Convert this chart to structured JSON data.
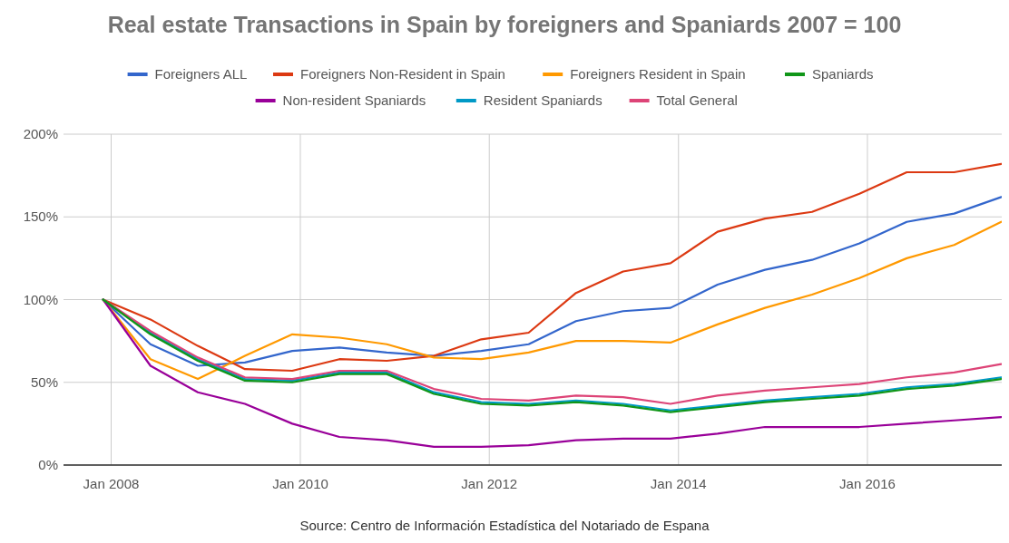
{
  "chart_data": {
    "type": "line",
    "title": "Real estate Transactions in Spain by foreigners and Spaniards 2007 = 100",
    "x": [
      "2007-12",
      "2008-06",
      "2008-12",
      "2009-06",
      "2009-12",
      "2010-06",
      "2010-12",
      "2011-06",
      "2011-12",
      "2012-06",
      "2012-12",
      "2013-06",
      "2013-12",
      "2014-06",
      "2014-12",
      "2015-06",
      "2015-12",
      "2016-06",
      "2016-12",
      "2017-06"
    ],
    "series": [
      {
        "name": "Foreigners ALL",
        "color": "#3366cc",
        "values": [
          100,
          73,
          60,
          62,
          69,
          71,
          68,
          66,
          69,
          73,
          87,
          93,
          95,
          109,
          118,
          124,
          134,
          147,
          152,
          162
        ]
      },
      {
        "name": "Foreigners Non-Resident in Spain",
        "color": "#dc3912",
        "values": [
          100,
          88,
          72,
          58,
          57,
          64,
          63,
          66,
          76,
          80,
          104,
          117,
          122,
          141,
          149,
          153,
          164,
          177,
          177,
          182
        ]
      },
      {
        "name": "Foreigners Resident in Spain",
        "color": "#ff9900",
        "values": [
          100,
          64,
          52,
          66,
          79,
          77,
          73,
          65,
          64,
          68,
          75,
          75,
          74,
          85,
          95,
          103,
          113,
          125,
          133,
          147
        ]
      },
      {
        "name": "Spaniards",
        "color": "#109618",
        "values": [
          100,
          79,
          63,
          51,
          50,
          55,
          55,
          43,
          37,
          36,
          38,
          36,
          32,
          35,
          38,
          40,
          42,
          46,
          48,
          52
        ]
      },
      {
        "name": "Non-resident Spaniards",
        "color": "#990099",
        "values": [
          100,
          60,
          44,
          37,
          25,
          17,
          15,
          11,
          11,
          12,
          15,
          16,
          16,
          19,
          23,
          23,
          23,
          25,
          27,
          29
        ]
      },
      {
        "name": "Resident Spaniards",
        "color": "#0099c6",
        "values": [
          100,
          80,
          64,
          52,
          51,
          56,
          56,
          44,
          38,
          37,
          39,
          37,
          33,
          36,
          39,
          41,
          43,
          47,
          49,
          53
        ]
      },
      {
        "name": "Total General",
        "color": "#dd4477",
        "values": [
          100,
          81,
          65,
          53,
          52,
          57,
          57,
          46,
          40,
          39,
          42,
          41,
          37,
          42,
          45,
          47,
          49,
          53,
          56,
          61
        ]
      }
    ],
    "xlim": [
      "2007-07",
      "2017-07"
    ],
    "xticks": [
      {
        "value": "2008-01",
        "label": "Jan 2008"
      },
      {
        "value": "2010-01",
        "label": "Jan 2010"
      },
      {
        "value": "2012-01",
        "label": "Jan 2012"
      },
      {
        "value": "2014-01",
        "label": "Jan 2014"
      },
      {
        "value": "2016-01",
        "label": "Jan 2016"
      }
    ],
    "ylim": [
      0,
      200
    ],
    "yticks": [
      {
        "value": 0,
        "label": "0%"
      },
      {
        "value": 50,
        "label": "50%"
      },
      {
        "value": 100,
        "label": "100%"
      },
      {
        "value": 150,
        "label": "150%"
      },
      {
        "value": 200,
        "label": "200%"
      }
    ],
    "grid": true,
    "legend": "top",
    "marker": "none",
    "line_style": "solid",
    "annotations": [
      "Source: Centro de Información Estadística del Notariado de Espana"
    ]
  }
}
